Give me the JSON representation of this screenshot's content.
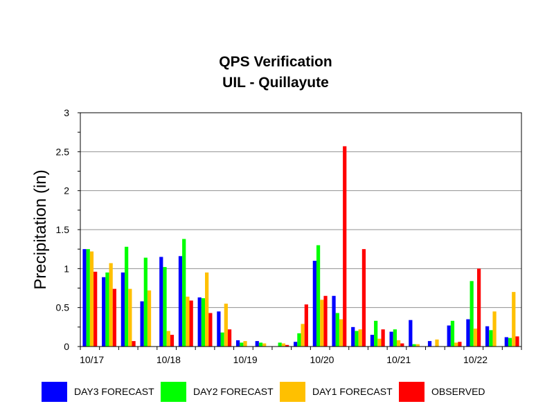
{
  "chart_data": {
    "type": "bar",
    "title": "QPS Verification",
    "subtitle": "UIL - Quillayute",
    "xlabel": "",
    "ylabel": "Precipitation (in)",
    "ylim": [
      0,
      3
    ],
    "yticks": [
      "0",
      "0.5",
      "1",
      "1.5",
      "2",
      "2.5",
      "3"
    ],
    "grid": true,
    "legend_position": "bottom",
    "date_labels": [
      "10/17",
      "10/18",
      "10/19",
      "10/20",
      "10/21",
      "10/22"
    ],
    "groups_per_date": 4,
    "series": [
      {
        "name": "DAY3 FORECAST",
        "color": "#0000ff",
        "values": [
          1.25,
          0.89,
          0.95,
          0.58,
          1.15,
          1.16,
          0.63,
          0.45,
          0.08,
          0.07,
          0,
          0.06,
          1.1,
          0.65,
          0.25,
          0.15,
          0.19,
          0.34,
          0.07,
          0.27,
          0.35,
          0.26,
          0.12
        ]
      },
      {
        "name": "DAY2 FORECAST",
        "color": "#00ff00",
        "values": [
          1.25,
          0.95,
          1.28,
          1.14,
          1.02,
          1.38,
          0.62,
          0.18,
          0.05,
          0.05,
          0.05,
          0.17,
          1.3,
          0.43,
          0.2,
          0.33,
          0.22,
          0.03,
          0,
          0.33,
          0.84,
          0.21,
          0.11
        ]
      },
      {
        "name": "DAY1 FORECAST",
        "color": "#ffc000",
        "values": [
          1.22,
          1.07,
          0.74,
          0.72,
          0.2,
          0.64,
          0.95,
          0.55,
          0.07,
          0.04,
          0.04,
          0.29,
          0.6,
          0.35,
          0.22,
          0.1,
          0.08,
          0.03,
          0.09,
          0.05,
          0.23,
          0.45,
          0.7
        ]
      },
      {
        "name": "OBSERVED",
        "color": "#ff0000",
        "values": [
          0.96,
          0.74,
          0.07,
          0,
          0.15,
          0.59,
          0.43,
          0.22,
          0,
          0,
          0.02,
          0.54,
          0.65,
          2.57,
          1.25,
          0.22,
          0.04,
          0,
          0,
          0.06,
          1.0,
          0,
          0.13
        ]
      }
    ]
  }
}
